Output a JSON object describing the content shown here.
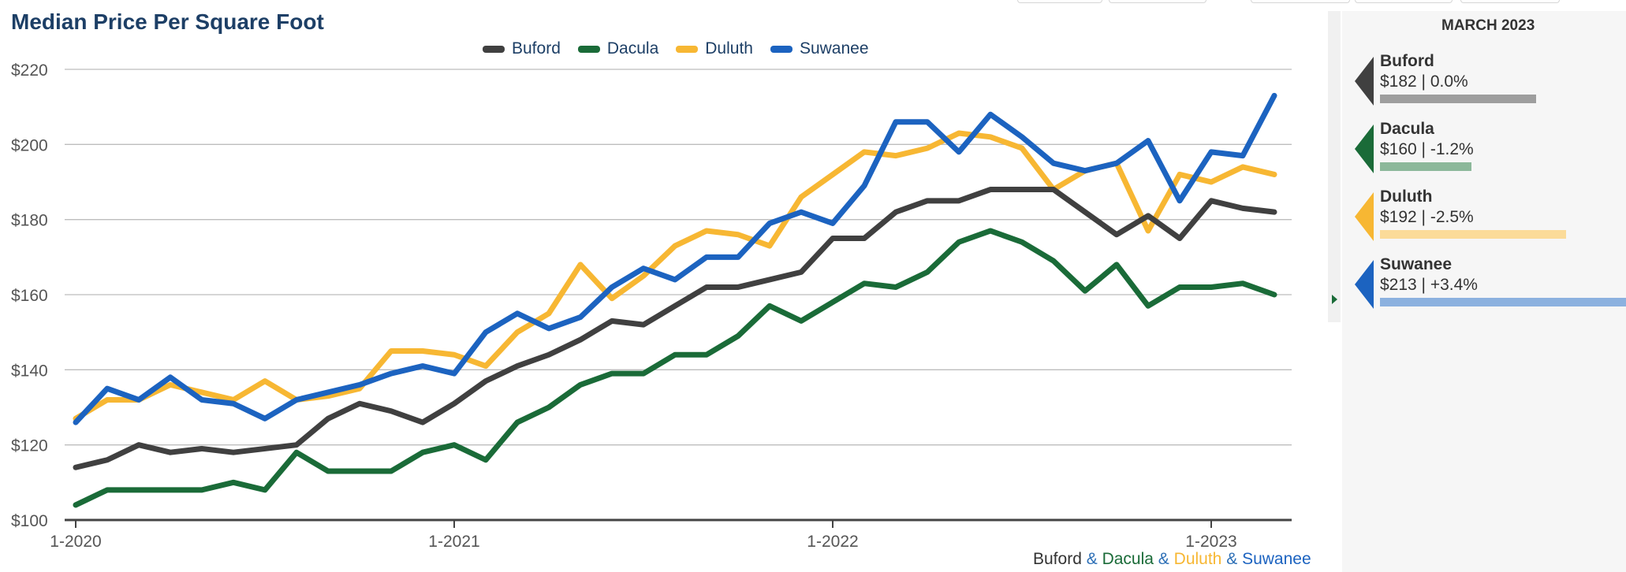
{
  "title": "Median Price Per Square Foot",
  "legend": [
    {
      "name": "Buford",
      "color": "#404040"
    },
    {
      "name": "Dacula",
      "color": "#1a6b38"
    },
    {
      "name": "Duluth",
      "color": "#f7b733"
    },
    {
      "name": "Suwanee",
      "color": "#1c63c0"
    }
  ],
  "footer": {
    "c1": "Buford",
    "c2": "Dacula",
    "c3": "Duluth",
    "c4": "Suwanee",
    "sep": "&"
  },
  "panel": {
    "title": "MARCH 2023",
    "cards": [
      {
        "name": "Buford",
        "stat": "$182 | 0.0%",
        "color": "#404040",
        "bar_color": "#9e9e9e",
        "value": 182
      },
      {
        "name": "Dacula",
        "stat": "$160 | -1.2%",
        "color": "#1a6b38",
        "bar_color": "#8cb89a",
        "value": 160
      },
      {
        "name": "Duluth",
        "stat": "$192 | -2.5%",
        "color": "#f7b733",
        "bar_color": "#fbdb99",
        "value": 192
      },
      {
        "name": "Suwanee",
        "stat": "$213 | +3.4%",
        "color": "#1c63c0",
        "bar_color": "#8cb1df",
        "value": 213
      }
    ]
  },
  "chart_data": {
    "type": "line",
    "title": "Median Price Per Square Foot",
    "xlabel": "",
    "ylabel": "",
    "x_ticks": [
      "1-2020",
      "1-2021",
      "1-2022",
      "1-2023"
    ],
    "y_ticks": [
      "$100",
      "$120",
      "$140",
      "$160",
      "$180",
      "$200",
      "$220"
    ],
    "ylim": [
      100,
      220
    ],
    "x_range": [
      "2020-01",
      "2023-03"
    ],
    "grid": true,
    "legend_position": "top-center",
    "x": [
      "2020-01",
      "2020-02",
      "2020-03",
      "2020-04",
      "2020-05",
      "2020-06",
      "2020-07",
      "2020-08",
      "2020-09",
      "2020-10",
      "2020-11",
      "2020-12",
      "2021-01",
      "2021-02",
      "2021-03",
      "2021-04",
      "2021-05",
      "2021-06",
      "2021-07",
      "2021-08",
      "2021-09",
      "2021-10",
      "2021-11",
      "2021-12",
      "2022-01",
      "2022-02",
      "2022-03",
      "2022-04",
      "2022-05",
      "2022-06",
      "2022-07",
      "2022-08",
      "2022-09",
      "2022-10",
      "2022-11",
      "2022-12",
      "2023-01",
      "2023-02",
      "2023-03"
    ],
    "series": [
      {
        "name": "Buford",
        "color": "#404040",
        "values": [
          114,
          116,
          120,
          118,
          119,
          118,
          119,
          120,
          127,
          131,
          129,
          126,
          131,
          137,
          141,
          144,
          148,
          153,
          152,
          157,
          162,
          162,
          164,
          166,
          175,
          175,
          182,
          185,
          185,
          188,
          188,
          188,
          182,
          176,
          181,
          175,
          185,
          183,
          182
        ]
      },
      {
        "name": "Dacula",
        "color": "#1a6b38",
        "values": [
          104,
          108,
          108,
          108,
          108,
          110,
          108,
          118,
          113,
          113,
          113,
          118,
          120,
          116,
          126,
          130,
          136,
          139,
          139,
          144,
          144,
          149,
          157,
          153,
          158,
          163,
          162,
          166,
          174,
          177,
          174,
          169,
          161,
          168,
          157,
          162,
          162,
          163,
          160
        ]
      },
      {
        "name": "Duluth",
        "color": "#f7b733",
        "values": [
          127,
          132,
          132,
          136,
          134,
          132,
          137,
          132,
          133,
          135,
          145,
          145,
          144,
          141,
          150,
          155,
          168,
          159,
          165,
          173,
          177,
          176,
          173,
          186,
          192,
          198,
          197,
          199,
          203,
          202,
          199,
          188,
          193,
          195,
          177,
          192,
          190,
          194,
          192
        ]
      },
      {
        "name": "Suwanee",
        "color": "#1c63c0",
        "values": [
          126,
          135,
          132,
          138,
          132,
          131,
          127,
          132,
          134,
          136,
          139,
          141,
          139,
          150,
          155,
          151,
          154,
          162,
          167,
          164,
          170,
          170,
          179,
          182,
          179,
          189,
          206,
          206,
          198,
          208,
          202,
          195,
          193,
          195,
          201,
          185,
          198,
          197,
          213
        ]
      }
    ]
  }
}
